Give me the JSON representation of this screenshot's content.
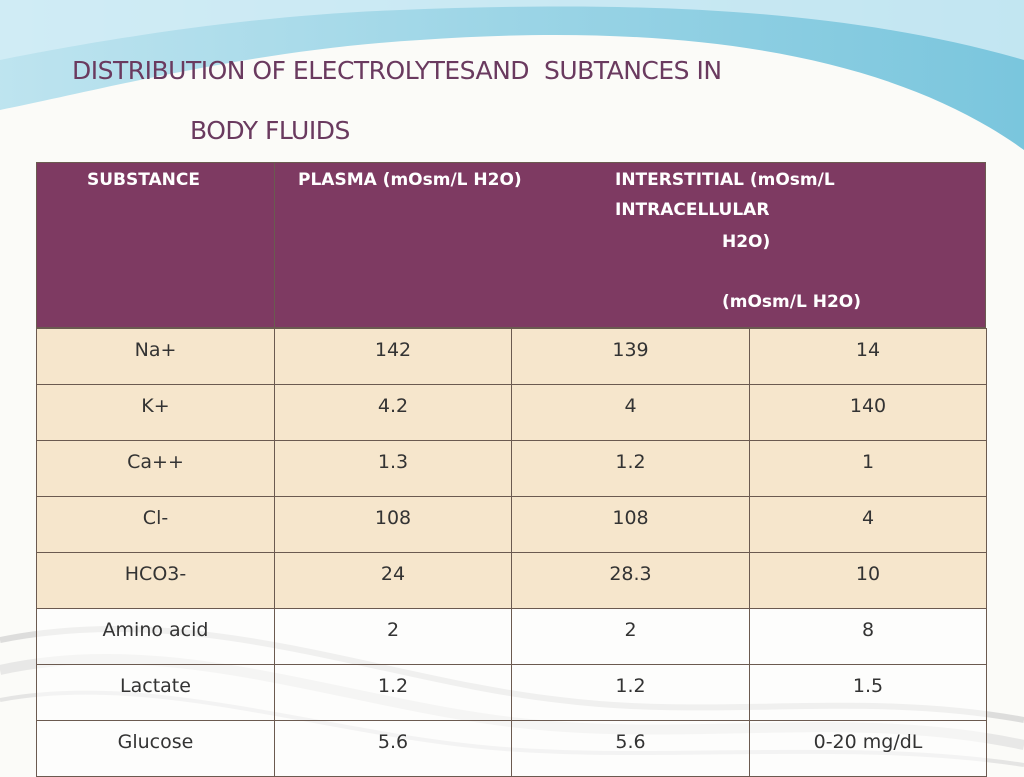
{
  "title": {
    "lines": [
      "DISTRIBUTION OF ELECTROLYTESAND  SUBTANCES IN",
      "BODY FLUIDS"
    ]
  },
  "table": {
    "header": [
      "SUBSTANCE",
      "PLASMA (mOsm/L H2O)",
      "INTERSTITIAL (mOsm/L",
      "INTRACELLULAR",
      "H2O)",
      "(mOsm/L H2O)"
    ],
    "rows": [
      [
        "Na+",
        "142",
        "139",
        "14"
      ],
      [
        "K+",
        "4.2",
        "4",
        "140"
      ],
      [
        "Ca++",
        "1.3",
        "1.2",
        "1"
      ],
      [
        "Cl-",
        "108",
        "108",
        "4"
      ],
      [
        "HCO3-",
        "24",
        "28.3",
        "10"
      ],
      [
        "Amino acid",
        "2",
        "2",
        "8"
      ],
      [
        "Lactate",
        "1.2",
        "1.2",
        "1.5"
      ],
      [
        "Glucose",
        "5.6",
        "5.6",
        "0-20 mg/dL"
      ]
    ]
  }
}
